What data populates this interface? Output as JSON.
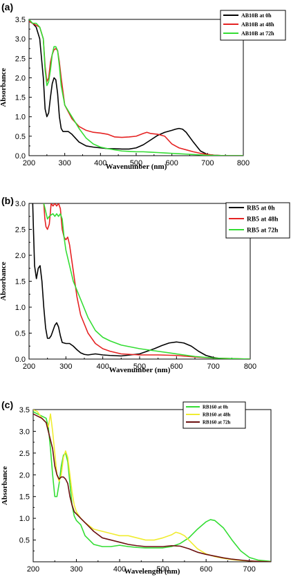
{
  "chart_data": [
    {
      "type": "line",
      "panel_label": "(a)",
      "xlabel": "Wavenumber (nm)",
      "ylabel": "Absorbance",
      "xlim": [
        200,
        800
      ],
      "ylim": [
        0,
        3.5
      ],
      "xticks": [
        200,
        300,
        400,
        500,
        600,
        700,
        800
      ],
      "yticks": [
        0.0,
        0.5,
        1.0,
        1.5,
        2.0,
        2.5,
        3.0,
        3.5
      ],
      "legend_position": "top-right",
      "series": [
        {
          "name": "AB10B at 0h",
          "color": "#000000",
          "x": [
            200,
            210,
            220,
            230,
            240,
            245,
            250,
            255,
            260,
            265,
            270,
            275,
            280,
            285,
            290,
            295,
            300,
            310,
            320,
            340,
            360,
            380,
            400,
            420,
            440,
            460,
            480,
            500,
            520,
            540,
            560,
            580,
            600,
            610,
            620,
            630,
            640,
            660,
            680,
            700,
            720,
            750,
            800
          ],
          "y": [
            3.45,
            3.4,
            3.3,
            3.0,
            2.0,
            1.2,
            1.0,
            1.1,
            1.5,
            1.85,
            2.0,
            1.95,
            1.6,
            1.0,
            0.7,
            0.62,
            0.62,
            0.62,
            0.55,
            0.35,
            0.25,
            0.22,
            0.2,
            0.18,
            0.18,
            0.17,
            0.17,
            0.2,
            0.28,
            0.4,
            0.52,
            0.6,
            0.65,
            0.68,
            0.7,
            0.68,
            0.6,
            0.35,
            0.12,
            0.03,
            0.01,
            0.0,
            0.0
          ]
        },
        {
          "name": "AB10B at 48h",
          "color": "#e52222",
          "x": [
            200,
            210,
            220,
            230,
            240,
            245,
            250,
            255,
            260,
            265,
            270,
            275,
            280,
            285,
            290,
            300,
            320,
            340,
            360,
            380,
            400,
            420,
            440,
            460,
            480,
            500,
            520,
            530,
            540,
            560,
            580,
            600,
            620,
            640,
            660,
            680,
            700,
            720,
            750,
            800
          ],
          "y": [
            3.45,
            3.4,
            3.35,
            3.3,
            3.0,
            2.3,
            1.9,
            2.0,
            2.4,
            2.6,
            2.72,
            2.75,
            2.7,
            2.4,
            2.0,
            1.3,
            0.95,
            0.75,
            0.65,
            0.6,
            0.58,
            0.55,
            0.48,
            0.47,
            0.48,
            0.5,
            0.57,
            0.6,
            0.57,
            0.55,
            0.5,
            0.3,
            0.2,
            0.15,
            0.1,
            0.06,
            0.03,
            0.01,
            0.0,
            0.0
          ]
        },
        {
          "name": "AB10B at 72h",
          "color": "#33dd33",
          "x": [
            200,
            210,
            220,
            230,
            240,
            245,
            250,
            255,
            260,
            265,
            270,
            275,
            280,
            285,
            290,
            300,
            310,
            320,
            340,
            360,
            380,
            400,
            420,
            440,
            460,
            480,
            500,
            520,
            540,
            560,
            580,
            600,
            620,
            640,
            660,
            680,
            700,
            750,
            800
          ],
          "y": [
            3.5,
            3.4,
            3.4,
            3.3,
            3.0,
            2.2,
            1.8,
            1.9,
            2.2,
            2.6,
            2.8,
            2.8,
            2.7,
            2.3,
            1.8,
            1.3,
            1.15,
            1.0,
            0.7,
            0.45,
            0.3,
            0.22,
            0.18,
            0.15,
            0.12,
            0.11,
            0.1,
            0.1,
            0.09,
            0.08,
            0.07,
            0.06,
            0.05,
            0.04,
            0.03,
            0.02,
            0.01,
            0.0,
            0.0
          ]
        }
      ]
    },
    {
      "type": "line",
      "panel_label": "(b)",
      "xlabel": "Wavenumber (nm)",
      "ylabel": "Absorbance",
      "xlim": [
        200,
        800
      ],
      "ylim": [
        0,
        3.0
      ],
      "xticks": [
        200,
        300,
        400,
        500,
        600,
        700,
        800
      ],
      "yticks": [
        0.0,
        0.5,
        1.0,
        1.5,
        2.0,
        2.5,
        3.0
      ],
      "legend_position": "top-right",
      "series": [
        {
          "name": "RB5 at 0h",
          "color": "#000000",
          "x": [
            210,
            212,
            215,
            220,
            225,
            230,
            235,
            240,
            245,
            250,
            255,
            260,
            265,
            270,
            275,
            280,
            285,
            290,
            300,
            310,
            320,
            330,
            340,
            350,
            360,
            380,
            400,
            420,
            450,
            500,
            520,
            540,
            560,
            580,
            600,
            620,
            640,
            660,
            680,
            700,
            720,
            750,
            800
          ],
          "y": [
            3.0,
            2.5,
            1.8,
            1.55,
            1.75,
            1.8,
            1.5,
            1.0,
            0.6,
            0.4,
            0.4,
            0.45,
            0.55,
            0.65,
            0.7,
            0.62,
            0.45,
            0.32,
            0.3,
            0.3,
            0.25,
            0.18,
            0.12,
            0.09,
            0.08,
            0.1,
            0.08,
            0.07,
            0.06,
            0.1,
            0.15,
            0.2,
            0.26,
            0.31,
            0.33,
            0.31,
            0.25,
            0.15,
            0.07,
            0.03,
            0.01,
            0.0,
            0.0
          ]
        },
        {
          "name": "RB5 at 48h",
          "color": "#e52222",
          "x": [
            240,
            243,
            246,
            250,
            255,
            260,
            265,
            270,
            275,
            280,
            285,
            290,
            295,
            300,
            305,
            310,
            320,
            330,
            340,
            360,
            380,
            400,
            420,
            450,
            500,
            550,
            600,
            650,
            700,
            750,
            800
          ],
          "y": [
            3.0,
            2.7,
            2.55,
            2.5,
            2.6,
            3.0,
            2.95,
            3.0,
            2.95,
            3.0,
            2.9,
            2.5,
            2.35,
            2.3,
            2.35,
            2.2,
            1.7,
            1.2,
            0.85,
            0.5,
            0.3,
            0.2,
            0.15,
            0.1,
            0.08,
            0.08,
            0.07,
            0.04,
            0.02,
            0.01,
            0.0
          ]
        },
        {
          "name": "RB5 at 72h",
          "color": "#33dd33",
          "x": [
            240,
            245,
            250,
            255,
            260,
            265,
            270,
            275,
            280,
            285,
            290,
            295,
            300,
            310,
            320,
            340,
            360,
            380,
            400,
            420,
            450,
            500,
            550,
            600,
            650,
            700,
            750,
            800
          ],
          "y": [
            3.0,
            2.85,
            2.7,
            2.75,
            2.78,
            2.8,
            2.75,
            2.8,
            2.75,
            2.8,
            2.7,
            2.35,
            2.1,
            1.8,
            1.5,
            1.15,
            0.8,
            0.55,
            0.42,
            0.35,
            0.27,
            0.2,
            0.15,
            0.1,
            0.05,
            0.02,
            0.01,
            0.0
          ]
        }
      ]
    },
    {
      "type": "line",
      "panel_label": "(c)",
      "xlabel": "Wavelength (nm)",
      "ylabel": "Absorbance",
      "xlim": [
        200,
        750
      ],
      "ylim": [
        0,
        3.5
      ],
      "xticks": [
        200,
        300,
        400,
        500,
        600,
        700
      ],
      "yticks": [
        0.5,
        1.0,
        1.5,
        2.0,
        2.5,
        3.0,
        3.5
      ],
      "legend_position": "top-right",
      "series": [
        {
          "name": "RB160 at 0h",
          "color": "#33dd33",
          "x": [
            200,
            210,
            220,
            230,
            235,
            240,
            245,
            250,
            255,
            260,
            265,
            270,
            275,
            280,
            285,
            290,
            295,
            300,
            310,
            320,
            340,
            360,
            380,
            400,
            420,
            440,
            460,
            480,
            500,
            520,
            540,
            560,
            580,
            600,
            610,
            620,
            640,
            660,
            680,
            700,
            720,
            750
          ],
          "y": [
            3.45,
            3.4,
            3.35,
            3.3,
            3.1,
            2.6,
            2.0,
            1.5,
            1.5,
            1.8,
            2.2,
            2.45,
            2.5,
            2.3,
            1.8,
            1.3,
            1.05,
            0.95,
            0.85,
            0.6,
            0.4,
            0.35,
            0.35,
            0.38,
            0.35,
            0.33,
            0.32,
            0.32,
            0.32,
            0.35,
            0.42,
            0.55,
            0.75,
            0.92,
            0.97,
            0.95,
            0.78,
            0.5,
            0.25,
            0.1,
            0.04,
            0.01
          ]
        },
        {
          "name": "RB160 at 48h",
          "color": "#f0ec30",
          "x": [
            200,
            210,
            220,
            230,
            235,
            240,
            245,
            250,
            255,
            260,
            265,
            270,
            275,
            280,
            285,
            290,
            295,
            300,
            310,
            320,
            340,
            360,
            380,
            400,
            420,
            440,
            460,
            480,
            500,
            520,
            530,
            540,
            550,
            560,
            580,
            600,
            620,
            640,
            660,
            680,
            700,
            720,
            750
          ],
          "y": [
            3.5,
            3.45,
            3.3,
            3.2,
            3.1,
            3.4,
            3.0,
            2.5,
            2.0,
            1.85,
            2.0,
            2.4,
            2.55,
            2.4,
            2.0,
            1.6,
            1.3,
            1.15,
            1.0,
            0.9,
            0.75,
            0.7,
            0.65,
            0.6,
            0.6,
            0.55,
            0.5,
            0.5,
            0.55,
            0.62,
            0.68,
            0.65,
            0.6,
            0.5,
            0.3,
            0.18,
            0.12,
            0.08,
            0.05,
            0.03,
            0.02,
            0.01,
            0.0
          ]
        },
        {
          "name": "RB160 at 72h",
          "color": "#6b0f0f",
          "x": [
            200,
            210,
            220,
            230,
            235,
            240,
            245,
            250,
            255,
            260,
            265,
            270,
            275,
            280,
            285,
            290,
            295,
            300,
            310,
            320,
            340,
            360,
            380,
            400,
            420,
            440,
            460,
            480,
            500,
            520,
            540,
            560,
            580,
            600,
            620,
            640,
            660,
            680,
            700,
            720,
            750
          ],
          "y": [
            3.4,
            3.35,
            3.3,
            3.2,
            3.0,
            2.8,
            2.6,
            2.2,
            2.0,
            1.9,
            1.95,
            1.95,
            1.9,
            1.8,
            1.5,
            1.3,
            1.15,
            1.1,
            1.0,
            0.9,
            0.7,
            0.55,
            0.5,
            0.45,
            0.4,
            0.37,
            0.35,
            0.35,
            0.35,
            0.37,
            0.36,
            0.3,
            0.22,
            0.17,
            0.13,
            0.09,
            0.06,
            0.04,
            0.02,
            0.01,
            0.0
          ]
        }
      ]
    }
  ]
}
